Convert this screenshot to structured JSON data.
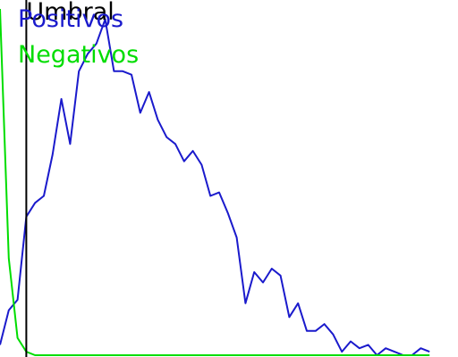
{
  "chart_data": {
    "type": "line",
    "title": "",
    "xlabel": "",
    "ylabel": "",
    "xlim": [
      0,
      50
    ],
    "ylim": [
      0,
      100
    ],
    "grid": false,
    "threshold": {
      "label": "Umbral",
      "x": 3,
      "color": "#000000"
    },
    "series": [
      {
        "name": "Positivos",
        "color": "#1a1acc",
        "x": [
          0,
          1,
          2,
          3,
          4,
          5,
          6,
          7,
          8,
          9,
          10,
          11,
          12,
          13,
          14,
          15,
          16,
          17,
          18,
          19,
          20,
          21,
          22,
          23,
          24,
          25,
          26,
          27,
          28,
          29,
          30,
          31,
          32,
          33,
          34,
          35,
          36,
          37,
          38,
          39,
          40,
          41,
          42,
          43,
          44,
          45,
          46,
          47,
          48,
          49
        ],
        "values": [
          3,
          13,
          16,
          40,
          44,
          46,
          58,
          74,
          61,
          82,
          87,
          90,
          97,
          82,
          82,
          81,
          70,
          76,
          68,
          63,
          61,
          56,
          59,
          55,
          46,
          47,
          41,
          34,
          15,
          24,
          21,
          25,
          23,
          11,
          15,
          7,
          7,
          9,
          6,
          1,
          4,
          2,
          3,
          0,
          2,
          1,
          0,
          0,
          2,
          1
        ]
      },
      {
        "name": "Negativos",
        "color": "#00dd00",
        "x": [
          0,
          1,
          2,
          3,
          4,
          5,
          6,
          7,
          8,
          9,
          10,
          11,
          12,
          13,
          14,
          15,
          16,
          17,
          18,
          19,
          20,
          21,
          22,
          23,
          24,
          25,
          26,
          27,
          28,
          29,
          30,
          31,
          32,
          33,
          34,
          35,
          36,
          37,
          38,
          39,
          40,
          41,
          42,
          43,
          44,
          45,
          46,
          47,
          48,
          49
        ],
        "values": [
          100,
          28,
          5,
          1,
          0,
          0,
          0,
          0,
          0,
          0,
          0,
          0,
          0,
          0,
          0,
          0,
          0,
          0,
          0,
          0,
          0,
          0,
          0,
          0,
          0,
          0,
          0,
          0,
          0,
          0,
          0,
          0,
          0,
          0,
          0,
          0,
          0,
          0,
          0,
          0,
          0,
          0,
          0,
          0,
          0,
          0,
          0,
          0,
          0,
          0
        ]
      }
    ],
    "legend": "top-left"
  }
}
